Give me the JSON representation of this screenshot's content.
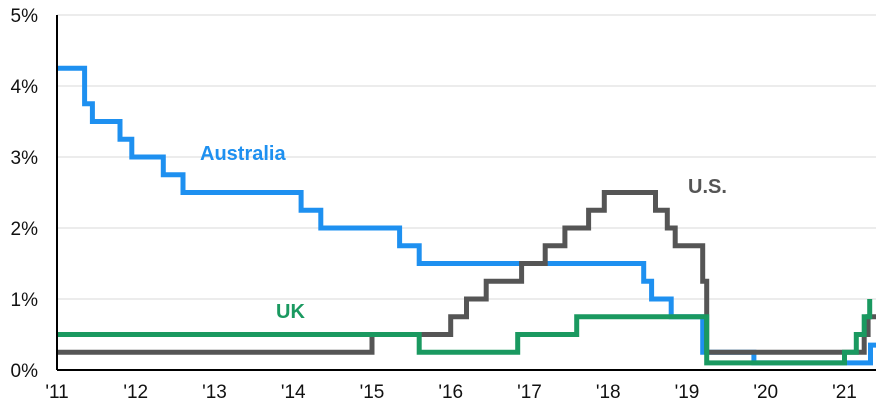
{
  "chart_data": {
    "type": "line",
    "title": "",
    "xlabel": "",
    "ylabel": "",
    "x_ticks": [
      "'11",
      "'12",
      "'13",
      "'14",
      "'15",
      "'16",
      "'17",
      "'18",
      "'19",
      "'20",
      "'21"
    ],
    "x_tick_values": [
      2011,
      2012,
      2013,
      2014,
      2015,
      2016,
      2017,
      2018,
      2019,
      2020,
      2021
    ],
    "y_ticks": [
      "0%",
      "1%",
      "2%",
      "3%",
      "4%",
      "5%"
    ],
    "y_tick_values": [
      0,
      1,
      2,
      3,
      4,
      5
    ],
    "xlim": [
      2011,
      2021.4
    ],
    "ylim": [
      0,
      5
    ],
    "grid": true,
    "step": true,
    "series": [
      {
        "name": "Australia",
        "color": "#1e90f0",
        "points": [
          [
            2011.0,
            4.25
          ],
          [
            2011.35,
            3.75
          ],
          [
            2011.45,
            3.5
          ],
          [
            2011.8,
            3.25
          ],
          [
            2011.95,
            3.0
          ],
          [
            2012.35,
            2.75
          ],
          [
            2012.6,
            2.5
          ],
          [
            2014.1,
            2.25
          ],
          [
            2014.35,
            2.0
          ],
          [
            2015.35,
            1.75
          ],
          [
            2015.6,
            1.5
          ],
          [
            2018.45,
            1.25
          ],
          [
            2018.55,
            1.0
          ],
          [
            2018.8,
            0.75
          ],
          [
            2019.2,
            0.25
          ],
          [
            2019.85,
            0.1
          ],
          [
            2021.0,
            0.1
          ],
          [
            2021.3,
            0.1
          ],
          [
            2021.33,
            0.35
          ],
          [
            2021.4,
            0.35
          ]
        ]
      },
      {
        "name": "U.S.",
        "color": "#555555",
        "points": [
          [
            2011.0,
            0.25
          ],
          [
            2015.0,
            0.5
          ],
          [
            2016.0,
            0.75
          ],
          [
            2016.2,
            1.0
          ],
          [
            2016.45,
            1.25
          ],
          [
            2016.9,
            1.5
          ],
          [
            2017.2,
            1.75
          ],
          [
            2017.45,
            2.0
          ],
          [
            2017.75,
            2.25
          ],
          [
            2017.95,
            2.5
          ],
          [
            2018.6,
            2.25
          ],
          [
            2018.75,
            2.0
          ],
          [
            2018.85,
            1.75
          ],
          [
            2019.2,
            1.25
          ],
          [
            2019.25,
            0.25
          ],
          [
            2021.2,
            0.25
          ],
          [
            2021.25,
            0.5
          ],
          [
            2021.3,
            0.75
          ],
          [
            2021.4,
            0.75
          ]
        ]
      },
      {
        "name": "UK",
        "color": "#1a9960",
        "points": [
          [
            2011.0,
            0.5
          ],
          [
            2015.6,
            0.25
          ],
          [
            2016.85,
            0.5
          ],
          [
            2017.6,
            0.75
          ],
          [
            2019.25,
            0.1
          ],
          [
            2020.9,
            0.1
          ],
          [
            2021.0,
            0.25
          ],
          [
            2021.1,
            0.25
          ],
          [
            2021.15,
            0.5
          ],
          [
            2021.25,
            0.75
          ],
          [
            2021.32,
            1.0
          ]
        ]
      }
    ]
  }
}
